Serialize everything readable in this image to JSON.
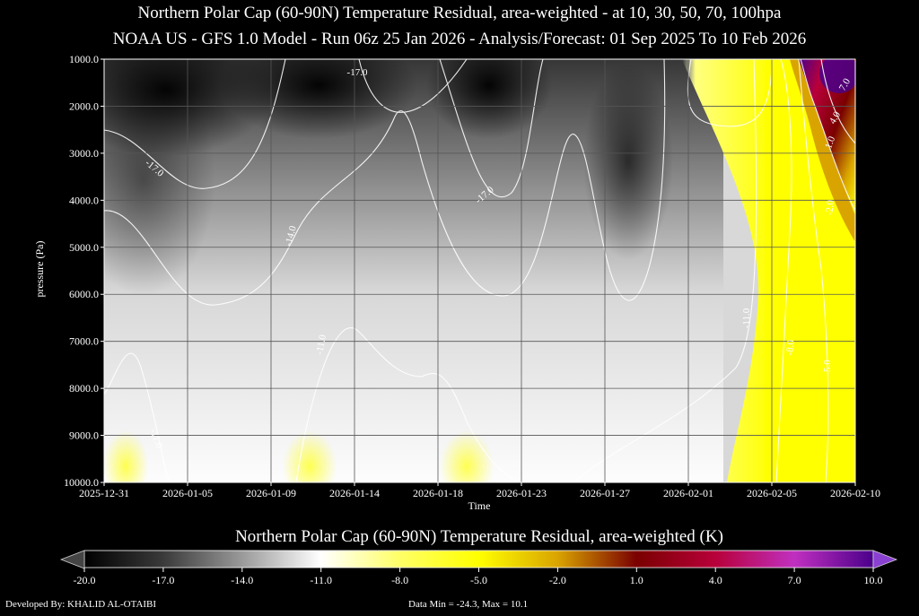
{
  "titles": {
    "line1": "Northern Polar Cap (60-90N) Temperature Residual, area-weighted - at 10, 30, 50, 70, 100hpa",
    "line2": "NOAA US - GFS 1.0 Model - Run 06z 25 Jan 2026 - Analysis/Forecast: 01 Sep 2025 To 10 Feb 2026"
  },
  "chart_data": {
    "type": "heatmap",
    "xlabel": "Time",
    "ylabel": "pressure (Pa)",
    "x_ticks": [
      "2025-12-31",
      "2026-01-05",
      "2026-01-09",
      "2026-01-14",
      "2026-01-18",
      "2026-01-23",
      "2026-01-27",
      "2026-02-01",
      "2026-02-05",
      "2026-02-10"
    ],
    "y_ticks": [
      "1000.0",
      "2000.0",
      "3000.0",
      "4000.0",
      "5000.0",
      "6000.0",
      "7000.0",
      "8000.0",
      "9000.0",
      "10000.0"
    ],
    "ylim": [
      1000,
      10000
    ],
    "y_inverted": true,
    "grid": true,
    "colorbar": {
      "title": "Northern Polar Cap (60-90N) Temperature Residual, area-weighted (K)",
      "ticks": [
        "-20.0",
        "-17.0",
        "-14.0",
        "-11.0",
        "-8.0",
        "-5.0",
        "-2.0",
        "1.0",
        "4.0",
        "7.0",
        "10.0"
      ],
      "range": [
        -20,
        10
      ],
      "stops": [
        {
          "v": -20,
          "color": "#000000"
        },
        {
          "v": -17,
          "color": "#3a3a3a"
        },
        {
          "v": -14,
          "color": "#9a9a9a"
        },
        {
          "v": -11,
          "color": "#ffffff"
        },
        {
          "v": -8,
          "color": "#ffff66"
        },
        {
          "v": -5,
          "color": "#ffff00"
        },
        {
          "v": -2,
          "color": "#d9a400"
        },
        {
          "v": 1,
          "color": "#7a0000"
        },
        {
          "v": 4,
          "color": "#b8003a"
        },
        {
          "v": 7,
          "color": "#c030c0"
        },
        {
          "v": 10,
          "color": "#4a008a"
        }
      ]
    },
    "contour_labels": [
      "-17.0",
      "-17.0",
      "-17.0",
      "-14.0",
      "-11.0",
      "-11.0",
      "-11.0",
      "-8.0",
      "-5.0",
      "-2.0",
      "1.0",
      "4.0",
      "7.0"
    ]
  },
  "footer": {
    "developer": "Developed By: KHALID AL-OTAIBI",
    "minmax": "Data Min = -24.3, Max = 10.1"
  }
}
